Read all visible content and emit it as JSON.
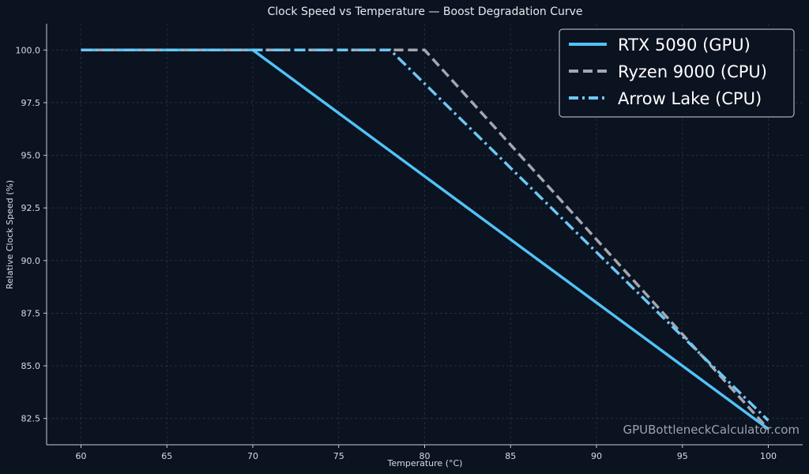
{
  "chart_data": {
    "type": "line",
    "title": "Clock Speed vs Temperature — Boost Degradation Curve",
    "xlabel": "Temperature (°C)",
    "ylabel": "Relative Clock Speed (%)",
    "xlim": [
      58,
      102
    ],
    "ylim": [
      81.25,
      101.25
    ],
    "x_ticks": [
      60,
      65,
      70,
      75,
      80,
      85,
      90,
      95,
      100
    ],
    "y_ticks": [
      82.5,
      85.0,
      87.5,
      90.0,
      92.5,
      95.0,
      97.5,
      100.0
    ],
    "x_tick_labels": [
      "60",
      "65",
      "70",
      "75",
      "80",
      "85",
      "90",
      "95",
      "100"
    ],
    "y_tick_labels": [
      "82.5",
      "85.0",
      "87.5",
      "90.0",
      "92.5",
      "95.0",
      "97.5",
      "100.0"
    ],
    "grid": true,
    "legend_position": "top-right",
    "series": [
      {
        "name": "RTX 5090 (GPU)",
        "style": "solid",
        "color": "#4fc3f7",
        "x": [
          60,
          70,
          100
        ],
        "y": [
          100.0,
          100.0,
          82.0
        ]
      },
      {
        "name": "Ryzen 9000 (CPU)",
        "style": "dashed",
        "color": "#a3a8b0",
        "x": [
          60,
          80,
          100
        ],
        "y": [
          100.0,
          100.0,
          82.0
        ]
      },
      {
        "name": "Arrow Lake (CPU)",
        "style": "dashdot",
        "color": "#6cc8f5",
        "x": [
          60,
          78,
          100
        ],
        "y": [
          100.0,
          100.0,
          82.4
        ]
      }
    ]
  },
  "watermark": "GPUBottleneckCalculator.com",
  "colors": {
    "background": "#0b1220",
    "axis": "#c8ccd4",
    "grid": "#2a3444"
  }
}
